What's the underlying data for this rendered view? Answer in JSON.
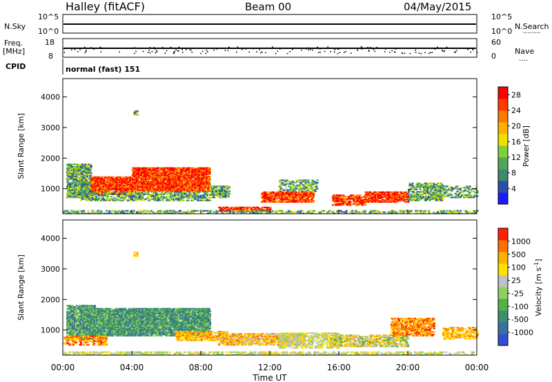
{
  "header": {
    "station": "Halley (fitACF)",
    "beam": "Beam 00",
    "date": "04/May/2015"
  },
  "top_panels": {
    "nsky_label": "N.Sky",
    "nsky_ticks": [
      "10^5",
      "10^0"
    ],
    "nsearch_label": "N.Search",
    "nsearch_ticks": [
      "10^5",
      "10^0"
    ],
    "freq_label": "Freq.",
    "freq_unit": "[MHz]",
    "freq_ticks": [
      "18",
      "8"
    ],
    "nave_label": "Nave",
    "nave_ticks": [
      "60",
      "0"
    ],
    "cpid_label": "CPID",
    "cpid_text": "normal (fast) 151"
  },
  "colors": {
    "power": [
      "#1a1aff",
      "#2b4fa8",
      "#3e8a6e",
      "#4ea858",
      "#7fcf3a",
      "#f0e000",
      "#ffb000",
      "#ff7a00",
      "#ff3a00",
      "#ff0000"
    ],
    "velocity": [
      "#3050d0",
      "#3a6fa0",
      "#3a8f70",
      "#55b048",
      "#8fd060",
      "#c0c0c0",
      "#ffe000",
      "#ffb000",
      "#ff7000",
      "#ff2000"
    ]
  },
  "chart_data": [
    {
      "type": "heatmap",
      "name": "power",
      "ylabel": "Slant Range [km]",
      "xlabel": "Time UT",
      "y_ticks": [
        1000,
        2000,
        3000,
        4000
      ],
      "ylim": [
        180,
        4600
      ],
      "x_ticks": [
        "00:00",
        "04:00",
        "08:00",
        "12:00",
        "16:00",
        "20:00",
        "00:00"
      ],
      "xlim_hours": [
        0,
        24
      ],
      "colorbar_label": "Power [dB]",
      "colorbar_ticks": [
        "4",
        "8",
        "12",
        "16",
        "20",
        "24",
        "28"
      ],
      "colorbar_range": [
        0,
        30
      ]
    },
    {
      "type": "heatmap",
      "name": "velocity",
      "ylabel": "Slant Range [km]",
      "xlabel": "Time UT",
      "y_ticks": [
        1000,
        2000,
        3000,
        4000
      ],
      "ylim": [
        180,
        4600
      ],
      "x_ticks": [
        "00:00",
        "04:00",
        "08:00",
        "12:00",
        "16:00",
        "20:00",
        "00:00"
      ],
      "xlim_hours": [
        0,
        24
      ],
      "colorbar_label": "Velocity [m s^-1]",
      "colorbar_ticks": [
        "1000",
        "500",
        "100",
        "25",
        "-25",
        "-100",
        "-500",
        "-1000"
      ]
    }
  ],
  "xaxis_title": "Time UT"
}
